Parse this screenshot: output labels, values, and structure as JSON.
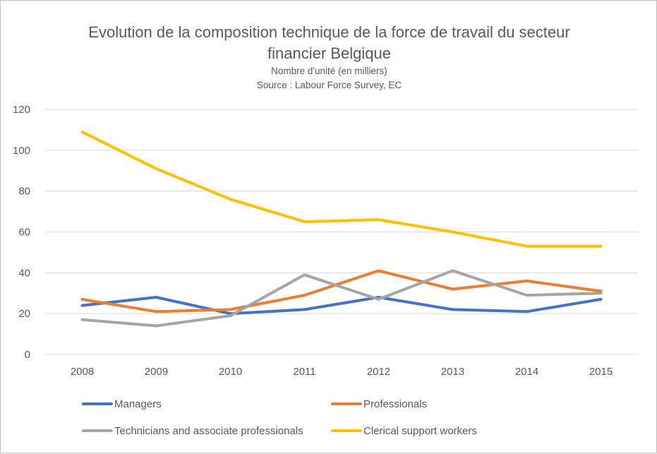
{
  "chart_data": {
    "type": "line",
    "title_line1": "Evolution de la composition technique de la force de travail du secteur",
    "title_line2": "financier Belgique",
    "subtitle_line1": "Nombre d'unité (en milliers)",
    "subtitle_line2": "Source : Labour Force  Survey, EC",
    "categories": [
      "2008",
      "2009",
      "2010",
      "2011",
      "2012",
      "2013",
      "2014",
      "2015"
    ],
    "ylim": [
      0,
      120
    ],
    "yticks": [
      0,
      20,
      40,
      60,
      80,
      100,
      120
    ],
    "grid": true,
    "legend_position": "bottom",
    "series": [
      {
        "name": "Managers",
        "color": "#4472c4",
        "values": [
          24,
          28,
          20,
          22,
          28,
          22,
          21,
          27
        ]
      },
      {
        "name": "Professionals",
        "color": "#ed7d31",
        "values": [
          27,
          21,
          22,
          29,
          41,
          32,
          36,
          31
        ]
      },
      {
        "name": "Technicians and associate professionals",
        "color": "#a5a5a5",
        "values": [
          17,
          14,
          19,
          39,
          27,
          41,
          29,
          30
        ]
      },
      {
        "name": "Clerical support workers",
        "color": "#ffc000",
        "values": [
          109,
          91,
          76,
          65,
          66,
          60,
          53,
          53
        ]
      }
    ]
  }
}
